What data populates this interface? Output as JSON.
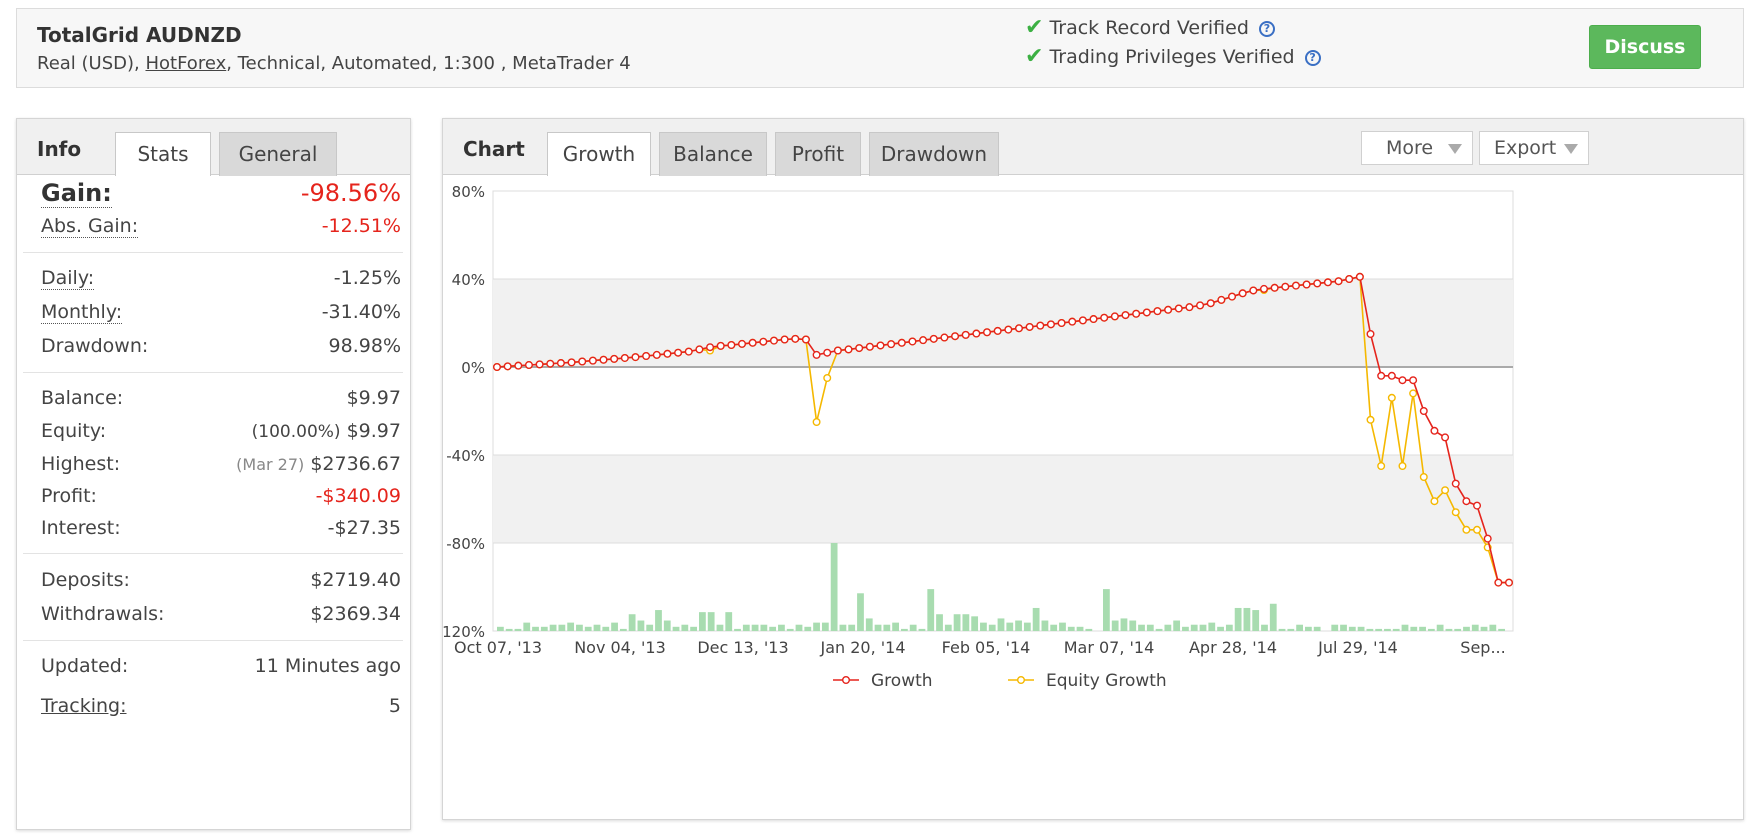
{
  "header": {
    "system_name": "TotalGrid AUDNZD",
    "desc_pre": "Real (USD), ",
    "broker": "HotForex",
    "desc_post": ", Technical, Automated, 1:300 , MetaTrader 4",
    "verified_track": "Track Record Verified",
    "verified_trading": "Trading Privileges Verified",
    "help_glyph": "?",
    "discuss_label": "Discuss"
  },
  "info": {
    "title": "Info",
    "tabs": [
      "Stats",
      "General"
    ],
    "gain_label": "Gain:",
    "gain_value": "-98.56%",
    "abs_gain_label": "Abs. Gain:",
    "abs_gain_value": "-12.51%",
    "daily_label": "Daily:",
    "daily_value": "-1.25%",
    "monthly_label": "Monthly:",
    "monthly_value": "-31.40%",
    "drawdown_label": "Drawdown:",
    "drawdown_value": "98.98%",
    "balance_label": "Balance:",
    "balance_value": "$9.97",
    "equity_label": "Equity:",
    "equity_pct": "(100.00%)",
    "equity_value": "$9.97",
    "highest_label": "Highest:",
    "highest_date": "(Mar 27)",
    "highest_value": "$2736.67",
    "profit_label": "Profit:",
    "profit_value": "-$340.09",
    "interest_label": "Interest:",
    "interest_value": "-$27.35",
    "deposits_label": "Deposits:",
    "deposits_value": "$2719.40",
    "withdrawals_label": "Withdrawals:",
    "withdrawals_value": "$2369.34",
    "updated_label": "Updated:",
    "updated_value": "11 Minutes ago",
    "tracking_label": "Tracking:",
    "tracking_value": "5"
  },
  "chart_panel": {
    "title": "Chart",
    "tabs": [
      "Growth",
      "Balance",
      "Profit",
      "Drawdown"
    ],
    "active_tab": "Growth",
    "more_label": "More",
    "export_label": "Export"
  },
  "colors": {
    "growth": "#e5241c",
    "equity": "#f5b800",
    "bars": "#a8dcb0"
  },
  "chart_data": {
    "type": "line",
    "x_tick_labels": [
      "Oct 07, '13",
      "Nov 04, '13",
      "Dec 13, '13",
      "Jan 20, '14",
      "Feb 05, '14",
      "Mar 07, '14",
      "Apr 28, '14",
      "Jul 29, '14",
      "Sep..."
    ],
    "y_tick_labels": [
      "80%",
      "40%",
      "0%",
      "-40%",
      "-80%",
      "-120%"
    ],
    "ylim": [
      -120,
      80
    ],
    "y_ticks": [
      80,
      40,
      0,
      -40,
      -80,
      -120
    ],
    "grid": true,
    "legend_position": "bottom",
    "series": [
      {
        "name": "Growth",
        "values": [
          0,
          0.3,
          0.6,
          0.9,
          1.2,
          1.5,
          1.8,
          2.1,
          2.5,
          2.9,
          3.3,
          3.7,
          4.1,
          4.5,
          5,
          5.5,
          6,
          6.5,
          7,
          8,
          9,
          9.6,
          10,
          10.5,
          11,
          11.5,
          12,
          12.5,
          12.8,
          12.5,
          5.5,
          6.5,
          7.5,
          8,
          8.6,
          9.2,
          9.8,
          10.4,
          11,
          11.6,
          12.2,
          12.8,
          13.4,
          14,
          14.6,
          15.2,
          15.8,
          16.4,
          17,
          17.6,
          18.2,
          18.8,
          19.4,
          20,
          20.6,
          21.2,
          21.8,
          22.4,
          23,
          23.6,
          24.2,
          24.8,
          25.4,
          26,
          26.6,
          27.2,
          28,
          29,
          30.5,
          32,
          33.5,
          34.8,
          35.5,
          36,
          36.5,
          37,
          37.5,
          38,
          38.5,
          39,
          40,
          41,
          15,
          -4,
          -4,
          -6,
          -6,
          -20,
          -29,
          -32,
          -53,
          -61,
          -63,
          -78,
          -98,
          -98
        ]
      },
      {
        "name": "Equity Growth",
        "values": [
          0,
          0.3,
          0.6,
          0.9,
          1.2,
          1.5,
          1.8,
          2.1,
          2.5,
          2.9,
          3.3,
          3.7,
          4.1,
          4.5,
          5,
          5.5,
          6,
          6.5,
          7,
          8,
          7.5,
          9.6,
          10,
          10.5,
          11,
          11.5,
          12,
          12.5,
          12.8,
          12.5,
          -25,
          -5,
          7.5,
          8,
          8.6,
          9.2,
          9.8,
          10.4,
          11,
          11.6,
          12.2,
          12.8,
          13.4,
          14,
          14.6,
          15.2,
          15.8,
          16.4,
          17,
          17.6,
          18.2,
          18.8,
          19.4,
          20,
          20.6,
          21.2,
          21.8,
          22.4,
          23,
          23.6,
          24.2,
          24.8,
          25.4,
          26,
          26.6,
          27.2,
          28,
          29,
          30.5,
          32,
          33.5,
          34.8,
          35,
          36,
          36.5,
          37,
          37.5,
          38,
          38.5,
          39,
          40,
          41,
          -24,
          -45,
          -14,
          -45,
          -12,
          -50,
          -61,
          -56,
          -66,
          -74,
          -74,
          -82,
          -98,
          -98
        ]
      }
    ],
    "bar_values": [
      2,
      1,
      1,
      4,
      2,
      2,
      3,
      3,
      4,
      3,
      2,
      3,
      2,
      4,
      1,
      8,
      5,
      3,
      10,
      5,
      2,
      3,
      2,
      9,
      9,
      3,
      9,
      1,
      3,
      3,
      3,
      2,
      3,
      1,
      3,
      2,
      4,
      4,
      42,
      3,
      3,
      18,
      6,
      3,
      3,
      4,
      1,
      3,
      1,
      20,
      8,
      3,
      8,
      8,
      7,
      4,
      3,
      6,
      4,
      5,
      4,
      11,
      5,
      3,
      4,
      2,
      2,
      1,
      0,
      20,
      5,
      6,
      5,
      3,
      3,
      1,
      3,
      5,
      2,
      3,
      3,
      4,
      2,
      3,
      11,
      11,
      10,
      3,
      13,
      1,
      1,
      3,
      2,
      2,
      0,
      3,
      3,
      2,
      2,
      1,
      1,
      1,
      1,
      3,
      2,
      2,
      1,
      3,
      1,
      1,
      2,
      3,
      2,
      3,
      1
    ]
  }
}
